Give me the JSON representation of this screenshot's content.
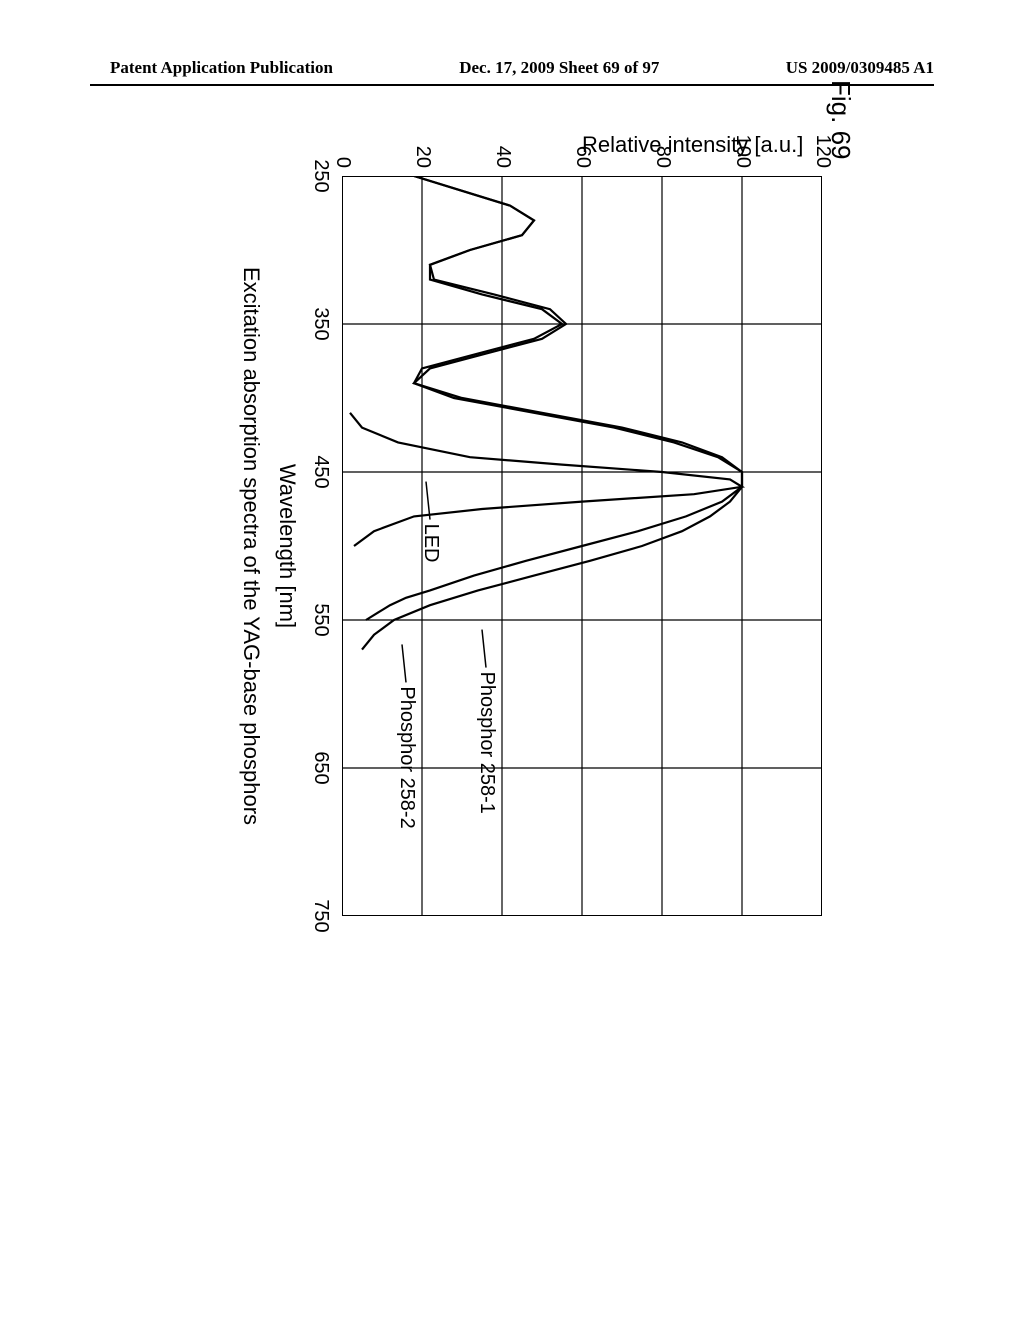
{
  "header": {
    "left": "Patent Application Publication",
    "center": "Dec. 17, 2009  Sheet 69 of 97",
    "right": "US 2009/0309485 A1"
  },
  "figure": {
    "label": "Fig. 69",
    "ylabel": "Relative intensity [a.u.]",
    "xlabel": "Wavelength [nm]",
    "caption": "Excitation absorption spectra of the YAG-base phosphors",
    "type": "line",
    "xlim": [
      250,
      750
    ],
    "ylim": [
      0,
      120
    ],
    "xtick_step": 100,
    "ytick_step": 20,
    "xticks": [
      250,
      350,
      450,
      550,
      650,
      750
    ],
    "yticks": [
      0,
      20,
      40,
      60,
      80,
      100,
      120
    ],
    "background_color": "#ffffff",
    "axis_color": "#000000",
    "grid_color": "#000000",
    "grid_width": 1.2,
    "line_color": "#000000",
    "line_width": 2.2,
    "label_fontsize": 22,
    "tick_fontsize": 20,
    "font_family": "Arial",
    "series": {
      "phosphor_258_1": {
        "label": "Phosphor 258-1",
        "label_pos_nm": 570,
        "label_pos_int": 36,
        "points": [
          [
            250,
            18
          ],
          [
            260,
            30
          ],
          [
            270,
            42
          ],
          [
            280,
            48
          ],
          [
            290,
            45
          ],
          [
            300,
            32
          ],
          [
            310,
            22
          ],
          [
            320,
            22
          ],
          [
            330,
            35
          ],
          [
            340,
            50
          ],
          [
            350,
            55
          ],
          [
            360,
            48
          ],
          [
            370,
            34
          ],
          [
            380,
            20
          ],
          [
            390,
            18
          ],
          [
            400,
            30
          ],
          [
            410,
            50
          ],
          [
            420,
            70
          ],
          [
            430,
            85
          ],
          [
            440,
            95
          ],
          [
            450,
            100
          ],
          [
            460,
            100
          ],
          [
            470,
            97
          ],
          [
            480,
            92
          ],
          [
            490,
            85
          ],
          [
            500,
            75
          ],
          [
            510,
            62
          ],
          [
            520,
            48
          ],
          [
            530,
            34
          ],
          [
            540,
            22
          ],
          [
            550,
            13
          ],
          [
            560,
            8
          ],
          [
            570,
            5
          ]
        ]
      },
      "phosphor_258_2": {
        "label": "Phosphor 258-2",
        "label_pos_nm": 580,
        "label_pos_int": 16,
        "points": [
          [
            250,
            18
          ],
          [
            260,
            30
          ],
          [
            270,
            42
          ],
          [
            280,
            48
          ],
          [
            290,
            45
          ],
          [
            300,
            32
          ],
          [
            310,
            22
          ],
          [
            320,
            23
          ],
          [
            330,
            38
          ],
          [
            340,
            52
          ],
          [
            350,
            56
          ],
          [
            360,
            50
          ],
          [
            370,
            36
          ],
          [
            380,
            22
          ],
          [
            390,
            18
          ],
          [
            400,
            28
          ],
          [
            410,
            48
          ],
          [
            420,
            68
          ],
          [
            430,
            83
          ],
          [
            440,
            94
          ],
          [
            450,
            100
          ],
          [
            460,
            100
          ],
          [
            470,
            95
          ],
          [
            480,
            86
          ],
          [
            490,
            74
          ],
          [
            500,
            60
          ],
          [
            510,
            46
          ],
          [
            520,
            33
          ],
          [
            530,
            22
          ],
          [
            535,
            16
          ],
          [
            540,
            12
          ],
          [
            545,
            9
          ],
          [
            550,
            6
          ]
        ]
      },
      "led": {
        "label": "LED",
        "label_pos_nm": 470,
        "label_pos_int": 22,
        "points": [
          [
            410,
            2
          ],
          [
            420,
            5
          ],
          [
            430,
            14
          ],
          [
            440,
            32
          ],
          [
            445,
            55
          ],
          [
            450,
            80
          ],
          [
            455,
            97
          ],
          [
            460,
            100
          ],
          [
            465,
            88
          ],
          [
            470,
            60
          ],
          [
            475,
            35
          ],
          [
            480,
            18
          ],
          [
            490,
            8
          ],
          [
            500,
            3
          ]
        ]
      }
    }
  }
}
